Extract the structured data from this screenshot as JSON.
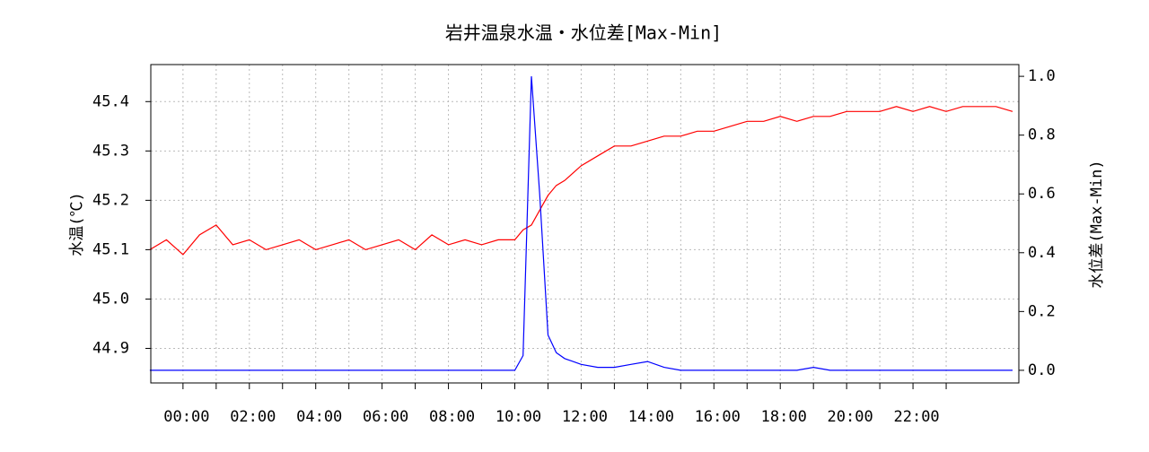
{
  "chart_data": {
    "type": "line",
    "title": "岩井温泉水温・水位差[Max-Min]",
    "ylabel": "水温(℃)",
    "y2label": "水位差(Max-Min)",
    "x": [
      -1,
      -0.5,
      0,
      0.5,
      1,
      1.5,
      2,
      2.5,
      3,
      3.5,
      4,
      4.5,
      5,
      5.5,
      6,
      6.5,
      7,
      7.5,
      8,
      8.5,
      9,
      9.5,
      10,
      10.25,
      10.5,
      10.75,
      11,
      11.25,
      11.5,
      12,
      12.5,
      13,
      13.5,
      14,
      14.5,
      15,
      15.5,
      16,
      16.5,
      17,
      17.5,
      18,
      18.5,
      19,
      19.5,
      20,
      20.5,
      21,
      21.5,
      22,
      22.5,
      23,
      23.5,
      24,
      24.5,
      25
    ],
    "series": [
      {
        "name": "水温",
        "color": "#ff0000",
        "values": [
          45.1,
          45.12,
          45.09,
          45.13,
          45.15,
          45.11,
          45.12,
          45.1,
          45.11,
          45.12,
          45.1,
          45.11,
          45.12,
          45.1,
          45.11,
          45.12,
          45.1,
          45.13,
          45.11,
          45.12,
          45.11,
          45.12,
          45.12,
          45.14,
          45.15,
          45.18,
          45.21,
          45.23,
          45.24,
          45.27,
          45.29,
          45.31,
          45.31,
          45.32,
          45.33,
          45.33,
          45.34,
          45.34,
          45.35,
          45.36,
          45.36,
          45.37,
          45.36,
          45.37,
          45.37,
          45.38,
          45.38,
          45.38,
          45.39,
          45.38,
          45.39,
          45.38,
          45.39,
          45.39,
          45.39,
          45.38
        ]
      },
      {
        "name": "水位差",
        "color": "#0000ff",
        "axis": "y2",
        "values": [
          0,
          0,
          0,
          0,
          0,
          0,
          0,
          0,
          0,
          0,
          0,
          0,
          0,
          0,
          0,
          0,
          0,
          0,
          0,
          0,
          0,
          0,
          0,
          0.05,
          1.0,
          0.6,
          0.12,
          0.06,
          0.04,
          0.02,
          0.01,
          0.01,
          0.02,
          0.03,
          0.01,
          0,
          0,
          0,
          0,
          0,
          0,
          0,
          0,
          0.01,
          0,
          0,
          0,
          0,
          0,
          0,
          0,
          0,
          0,
          0,
          0,
          0
        ]
      }
    ],
    "xlim": [
      -0.97,
      25.19
    ],
    "xticks": [
      {
        "value": 0,
        "label": "00:00"
      },
      {
        "value": 2,
        "label": "02:00"
      },
      {
        "value": 4,
        "label": "04:00"
      },
      {
        "value": 6,
        "label": "06:00"
      },
      {
        "value": 8,
        "label": "08:00"
      },
      {
        "value": 10,
        "label": "10:00"
      },
      {
        "value": 12,
        "label": "12:00"
      },
      {
        "value": 14,
        "label": "14:00"
      },
      {
        "value": 16,
        "label": "16:00"
      },
      {
        "value": 18,
        "label": "18:00"
      },
      {
        "value": 20,
        "label": "20:00"
      },
      {
        "value": 22,
        "label": "22:00"
      }
    ],
    "xminorticks": [
      1,
      3,
      5,
      7,
      9,
      11,
      13,
      15,
      17,
      19,
      21,
      23
    ],
    "ylim": [
      44.83,
      45.475
    ],
    "yticks": [
      44.9,
      {
        "value": 45,
        "label": "45.0"
      },
      45.1,
      45.2,
      45.3,
      45.4
    ],
    "y2lim": [
      -0.043,
      1.04
    ],
    "y2ticks": [
      {
        "value": 0,
        "label": "0.0"
      },
      0.2,
      0.4,
      0.6,
      0.8,
      {
        "value": 1,
        "label": "1.0"
      }
    ],
    "grid": true
  }
}
